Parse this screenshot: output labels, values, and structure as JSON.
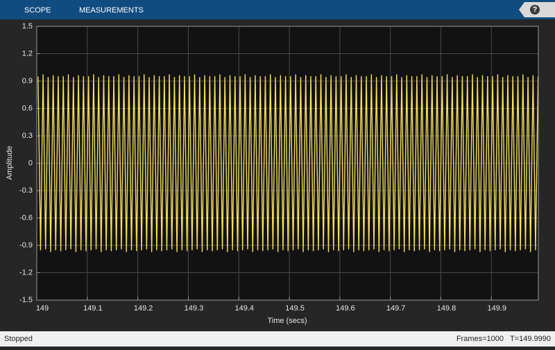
{
  "toolbar": {
    "tabs": [
      "SCOPE",
      "MEASUREMENTS"
    ],
    "help": "?"
  },
  "chart_data": {
    "type": "line",
    "ylabel": "Amplitude",
    "xlabel": "Time (secs)",
    "xlim": [
      149,
      149.993
    ],
    "ylim": [
      -1.5,
      1.5
    ],
    "xticks": [
      149,
      149.1,
      149.2,
      149.3,
      149.4,
      149.5,
      149.6,
      149.7,
      149.8,
      149.9
    ],
    "yticks": [
      -1.5,
      -1.2,
      -0.9,
      -0.6,
      -0.3,
      0,
      0.3,
      0.6,
      0.9,
      1.2,
      1.5
    ],
    "grid": true,
    "x": [
      149.0025,
      149.0075,
      149.0125,
      149.0175,
      149.0225,
      149.0275,
      149.0325,
      149.0375,
      149.0425,
      149.0475,
      149.0525,
      149.0575,
      149.0625,
      149.0675,
      149.0725,
      149.0775,
      149.0825,
      149.0875,
      149.0925,
      149.0975,
      149.1025,
      149.1075,
      149.1125,
      149.1175,
      149.1225,
      149.1275,
      149.1325,
      149.1375,
      149.1425,
      149.1475,
      149.1525,
      149.1575,
      149.1625,
      149.1675,
      149.1725,
      149.1775,
      149.1825,
      149.1875,
      149.1925,
      149.1975,
      149.2025,
      149.2075,
      149.2125,
      149.2175,
      149.2225,
      149.2275,
      149.2325,
      149.2375,
      149.2425,
      149.2475,
      149.2525,
      149.2575,
      149.2625,
      149.2675,
      149.2725,
      149.2775,
      149.2825,
      149.2875,
      149.2925,
      149.2975,
      149.3025,
      149.3075,
      149.3125,
      149.3175,
      149.3225,
      149.3275,
      149.3325,
      149.3375,
      149.3425,
      149.3475,
      149.3525,
      149.3575,
      149.3625,
      149.3675,
      149.3725,
      149.3775,
      149.3825,
      149.3875,
      149.3925,
      149.3975,
      149.4025,
      149.4075,
      149.4125,
      149.4175,
      149.4225,
      149.4275,
      149.4325,
      149.4375,
      149.4425,
      149.4475,
      149.4525,
      149.4575,
      149.4625,
      149.4675,
      149.4725,
      149.4775,
      149.4825,
      149.4875,
      149.4925,
      149.4975,
      149.5025,
      149.5075,
      149.5125,
      149.5175,
      149.5225,
      149.5275,
      149.5325,
      149.5375,
      149.5425,
      149.5475,
      149.5525,
      149.5575,
      149.5625,
      149.5675,
      149.5725,
      149.5775,
      149.5825,
      149.5875,
      149.5925,
      149.5975,
      149.6025,
      149.6075,
      149.6125,
      149.6175,
      149.6225,
      149.6275,
      149.6325,
      149.6375,
      149.6425,
      149.6475,
      149.6525,
      149.6575,
      149.6625,
      149.6675,
      149.6725,
      149.6775,
      149.6825,
      149.6875,
      149.6925,
      149.6975,
      149.7025,
      149.7075,
      149.7125,
      149.7175,
      149.7225,
      149.7275,
      149.7325,
      149.7375,
      149.7425,
      149.7475,
      149.7525,
      149.7575,
      149.7625,
      149.7675,
      149.7725,
      149.7775,
      149.7825,
      149.7875,
      149.7925,
      149.7975,
      149.8025,
      149.8075,
      149.8125,
      149.8175,
      149.8225,
      149.8275,
      149.8325,
      149.8375,
      149.8425,
      149.8475,
      149.8525,
      149.8575,
      149.8625,
      149.8675,
      149.8725,
      149.8775,
      149.8825,
      149.8875,
      149.8925,
      149.8975,
      149.9025,
      149.9075,
      149.9125,
      149.9175,
      149.9225,
      149.9275,
      149.9325,
      149.9375,
      149.9425,
      149.9475,
      149.9525,
      149.9575,
      149.9625,
      149.9675,
      149.9725,
      149.9775,
      149.9825,
      149.9875,
      149.9925
    ],
    "series": [
      {
        "color": "#f7e05c",
        "values": [
          0.95,
          -0.95,
          0.97,
          -0.94,
          0.94,
          -0.97,
          0.96,
          -0.95,
          0.95,
          -0.96,
          0.95,
          -0.95,
          0.97,
          -0.94,
          0.94,
          -0.97,
          0.96,
          -0.95,
          0.95,
          -0.96,
          0.95,
          -0.95,
          0.97,
          -0.94,
          0.94,
          -0.97,
          0.96,
          -0.95,
          0.95,
          -0.96,
          0.95,
          -0.95,
          0.97,
          -0.94,
          0.94,
          -0.97,
          0.96,
          -0.95,
          0.95,
          -0.96,
          0.95,
          -0.95,
          0.97,
          -0.94,
          0.94,
          -0.97,
          0.96,
          -0.95,
          0.95,
          -0.96,
          0.95,
          -0.95,
          0.97,
          -0.94,
          0.94,
          -0.97,
          0.96,
          -0.95,
          0.95,
          -0.96,
          0.95,
          -0.95,
          0.97,
          -0.94,
          0.94,
          -0.97,
          0.96,
          -0.95,
          0.95,
          -0.96,
          0.95,
          -0.95,
          0.97,
          -0.94,
          0.94,
          -0.97,
          0.96,
          -0.95,
          0.95,
          -0.96,
          0.95,
          -0.95,
          0.97,
          -0.94,
          0.94,
          -0.97,
          0.96,
          -0.95,
          0.95,
          -0.96,
          0.95,
          -0.95,
          0.97,
          -0.94,
          0.94,
          -0.97,
          0.96,
          -0.95,
          0.95,
          -0.96,
          0.95,
          -0.95,
          0.97,
          -0.94,
          0.94,
          -0.97,
          0.96,
          -0.95,
          0.95,
          -0.96,
          0.95,
          -0.95,
          0.97,
          -0.94,
          0.94,
          -0.97,
          0.96,
          -0.95,
          0.95,
          -0.96,
          0.95,
          -0.95,
          0.97,
          -0.94,
          0.94,
          -0.97,
          0.96,
          -0.95,
          0.95,
          -0.96,
          0.95,
          -0.95,
          0.97,
          -0.94,
          0.94,
          -0.97,
          0.96,
          -0.95,
          0.95,
          -0.96,
          0.95,
          -0.95,
          0.97,
          -0.94,
          0.94,
          -0.97,
          0.96,
          -0.95,
          0.95,
          -0.96,
          0.95,
          -0.95,
          0.97,
          -0.94,
          0.94,
          -0.97,
          0.96,
          -0.95,
          0.95,
          -0.96,
          0.95,
          -0.95,
          0.97,
          -0.94,
          0.94,
          -0.97,
          0.96,
          -0.95,
          0.95,
          -0.96,
          0.95,
          -0.95,
          0.97,
          -0.94,
          0.94,
          -0.97,
          0.96,
          -0.95,
          0.95,
          -0.96,
          0.95,
          -0.95,
          0.97,
          -0.94,
          0.94,
          -0.97,
          0.96,
          -0.95,
          0.95,
          -0.96,
          0.95,
          -0.95,
          0.97,
          -0.94,
          0.94,
          -0.97,
          0.96,
          -0.95,
          0.95
        ]
      }
    ]
  },
  "status": {
    "state": "Stopped",
    "frames": "Frames=1000",
    "time": "T=149.9990"
  }
}
